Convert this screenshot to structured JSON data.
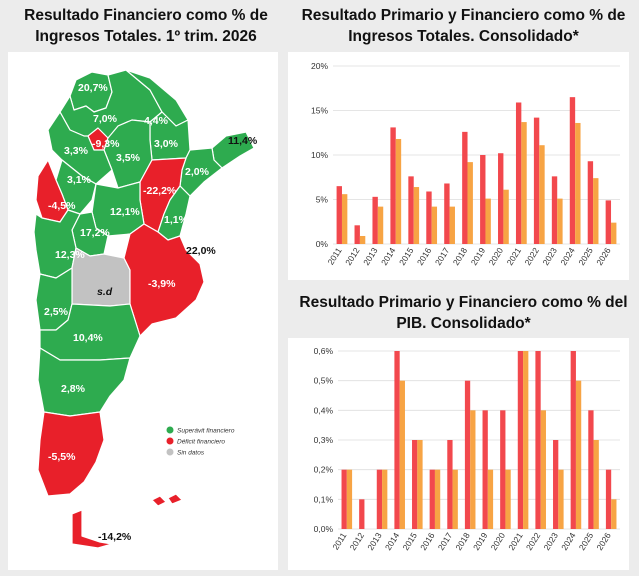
{
  "map_panel": {
    "title_line1": "Resultado Financiero como % de",
    "title_line2": "Ingresos Totales. 1º trim. 2026",
    "labels": [
      {
        "text": "20,7%",
        "status": "superavit"
      },
      {
        "text": "7,0%",
        "status": "superavit"
      },
      {
        "text": "4,4%",
        "status": "superavit"
      },
      {
        "text": "3,3%",
        "status": "superavit"
      },
      {
        "text": "-9,3%",
        "status": "deficit"
      },
      {
        "text": "3,5%",
        "status": "superavit"
      },
      {
        "text": "3,0%",
        "status": "superavit"
      },
      {
        "text": "11,4%",
        "status": "superavit"
      },
      {
        "text": "3,1%",
        "status": "superavit"
      },
      {
        "text": "-22,2%",
        "status": "deficit"
      },
      {
        "text": "2,0%",
        "status": "superavit"
      },
      {
        "text": "-4,5%",
        "status": "deficit"
      },
      {
        "text": "12,1%",
        "status": "superavit"
      },
      {
        "text": "1,1%",
        "status": "superavit"
      },
      {
        "text": "17,2%",
        "status": "superavit"
      },
      {
        "text": "12,3%",
        "status": "superavit"
      },
      {
        "text": "22,0%",
        "status": "superavit"
      },
      {
        "text": "s.d",
        "status": "sin_datos"
      },
      {
        "text": "-3,9%",
        "status": "deficit"
      },
      {
        "text": "2,5%",
        "status": "superavit"
      },
      {
        "text": "10,4%",
        "status": "superavit"
      },
      {
        "text": "2,8%",
        "status": "superavit"
      },
      {
        "text": "-5,5%",
        "status": "deficit"
      },
      {
        "text": "-14,2%",
        "status": "deficit"
      }
    ],
    "legend": [
      {
        "label": "Superávit financiero",
        "color": "#2eab4f"
      },
      {
        "label": "Déficit financiero",
        "color": "#e8202a"
      },
      {
        "label": "Sin datos",
        "color": "#c2c2c2"
      }
    ]
  },
  "colors": {
    "green": "#2eab4f",
    "red": "#e8202a",
    "grey": "#c2c2c2",
    "bar_red": "#f2484d",
    "bar_orange": "#f7a444"
  },
  "chart_data": [
    {
      "type": "bar",
      "title": "Resultado Primario y Financiero como % de Ingresos Totales. Consolidado*",
      "title_line1": "Resultado Primario y Financiero como % de",
      "title_line2": "Ingresos Totales. Consolidado*",
      "categories": [
        "2011",
        "2012",
        "2013",
        "2014",
        "2015",
        "2016",
        "2017",
        "2018",
        "2019",
        "2020",
        "2021",
        "2022",
        "2023",
        "2024",
        "2025",
        "2026"
      ],
      "series": [
        {
          "values": [
            6.5,
            2.1,
            5.3,
            13.1,
            7.6,
            5.9,
            6.8,
            12.6,
            10.0,
            10.2,
            15.9,
            14.2,
            7.6,
            16.5,
            9.3,
            4.9
          ],
          "color": "#f2484d"
        },
        {
          "values": [
            5.6,
            0.9,
            4.2,
            11.8,
            6.4,
            4.2,
            4.2,
            9.2,
            5.1,
            6.1,
            13.7,
            11.1,
            5.1,
            13.6,
            7.4,
            2.4
          ],
          "color": "#f7a444"
        }
      ],
      "ylim": [
        0,
        20
      ],
      "yticks": [
        0,
        5,
        10,
        15,
        20
      ],
      "ytick_labels": [
        "0%",
        "5%",
        "10%",
        "15%",
        "20%"
      ],
      "grid": true
    },
    {
      "type": "bar",
      "title": "Resultado Primario y Financiero como % del PIB. Consolidado*",
      "title_line1": "Resultado Primario y Financiero como % del",
      "title_line2": "PIB. Consolidado*",
      "categories": [
        "2011",
        "2012",
        "2013",
        "2014",
        "2015",
        "2016",
        "2017",
        "2018",
        "2019",
        "2020",
        "2021",
        "2022",
        "2023",
        "2024",
        "2025",
        "2026"
      ],
      "series": [
        {
          "values": [
            0.2,
            0.1,
            0.2,
            0.6,
            0.3,
            0.2,
            0.3,
            0.5,
            0.4,
            0.4,
            0.6,
            0.6,
            0.3,
            0.6,
            0.4,
            0.2
          ],
          "color": "#f2484d"
        },
        {
          "values": [
            0.2,
            0.0,
            0.2,
            0.5,
            0.3,
            0.2,
            0.2,
            0.4,
            0.2,
            0.2,
            0.6,
            0.4,
            0.2,
            0.5,
            0.3,
            0.1
          ],
          "color": "#f7a444"
        }
      ],
      "ylim": [
        0,
        0.6
      ],
      "yticks": [
        0,
        0.1,
        0.2,
        0.3,
        0.4,
        0.5,
        0.6
      ],
      "ytick_labels": [
        "0,0%",
        "0,1%",
        "0,2%",
        "0,3%",
        "0,4%",
        "0,5%",
        "0,6%"
      ],
      "grid": true
    }
  ]
}
